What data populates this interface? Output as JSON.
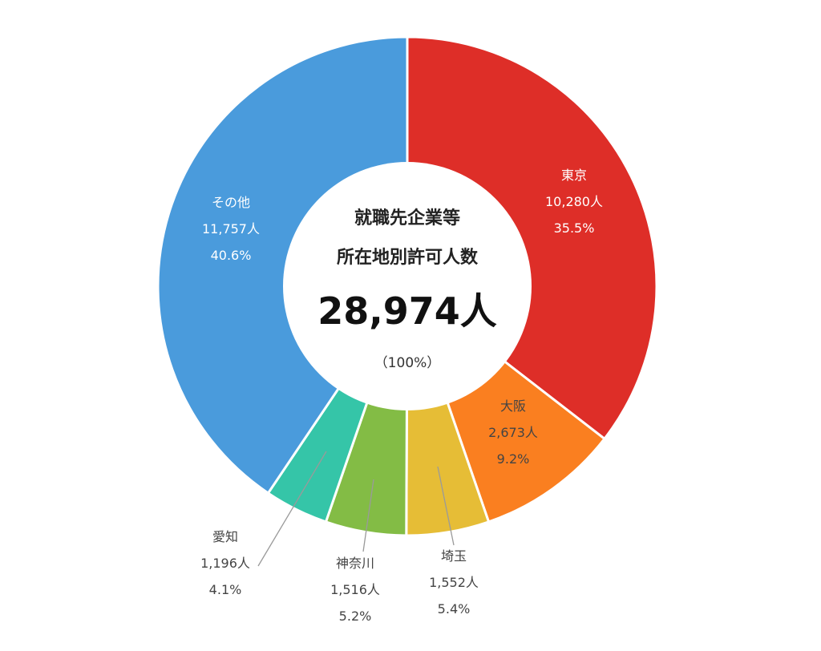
{
  "chart_data": {
    "type": "pie",
    "center": {
      "title_line1": "就職先企業等",
      "title_line2": "所在地別許可人数",
      "total": "28,974人",
      "total_percent": "（100%）"
    },
    "unit": "人",
    "slices": [
      {
        "label": "東京",
        "value": 10280,
        "value_text": "10,280人",
        "percent_text": "35.5%",
        "color": "#DE2E28",
        "label_color": "#FFFFFF",
        "label_placement": "inside"
      },
      {
        "label": "大阪",
        "value": 2673,
        "value_text": "2,673人",
        "percent_text": "9.2%",
        "color": "#FA7F20",
        "label_color": "#444444",
        "label_placement": "inside"
      },
      {
        "label": "埼玉",
        "value": 1552,
        "value_text": "1,552人",
        "percent_text": "5.4%",
        "color": "#E6BD36",
        "label_color": "#444444",
        "label_placement": "outside"
      },
      {
        "label": "神奈川",
        "value": 1516,
        "value_text": "1,516人",
        "percent_text": "5.2%",
        "color": "#83BC45",
        "label_color": "#444444",
        "label_placement": "outside"
      },
      {
        "label": "愛知",
        "value": 1196,
        "value_text": "1,196人",
        "percent_text": "4.1%",
        "color": "#35C5A8",
        "label_color": "#444444",
        "label_placement": "outside"
      },
      {
        "label": "その他",
        "value": 11757,
        "value_text": "11,757人",
        "percent_text": "40.6%",
        "color": "#4A9BDC",
        "label_color": "#FFFFFF",
        "label_placement": "inside"
      }
    ],
    "colors": {
      "background": "#FFFFFF",
      "separator": "#FFFFFF",
      "center_fill": "#FFFFFF",
      "leader_line": "#9A9A9A"
    }
  }
}
